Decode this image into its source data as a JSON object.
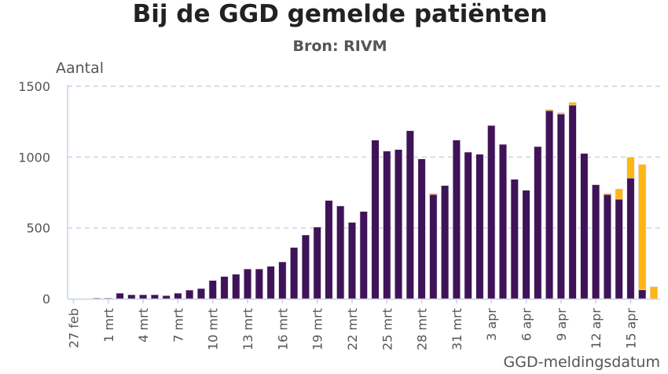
{
  "chart_data": {
    "type": "bar",
    "stacked": true,
    "title": "Bij de GGD gemelde patiënten",
    "subtitle": "Bron: RIVM",
    "ylabel": "Aantal",
    "xlabel": "GGD-meldingsdatum",
    "ylim": [
      0,
      1500
    ],
    "yticks": [
      0,
      500,
      1000,
      1500
    ],
    "grid": true,
    "legend": "none",
    "xtick_labels": [
      "27 feb",
      "1 mrt",
      "4 mrt",
      "7 mrt",
      "10 mrt",
      "13 mrt",
      "16 mrt",
      "19 mrt",
      "22 mrt",
      "25 mrt",
      "28 mrt",
      "31 mrt",
      "3 apr",
      "6 apr",
      "9 apr",
      "12 apr",
      "15 apr"
    ],
    "categories": [
      "27 feb",
      "28 feb",
      "29 feb",
      "1 mrt",
      "2 mrt",
      "3 mrt",
      "4 mrt",
      "5 mrt",
      "6 mrt",
      "7 mrt",
      "8 mrt",
      "9 mrt",
      "10 mrt",
      "11 mrt",
      "12 mrt",
      "13 mrt",
      "14 mrt",
      "15 mrt",
      "16 mrt",
      "17 mrt",
      "18 mrt",
      "19 mrt",
      "20 mrt",
      "21 mrt",
      "22 mrt",
      "23 mrt",
      "24 mrt",
      "25 mrt",
      "26 mrt",
      "27 mrt",
      "28 mrt",
      "29 mrt",
      "30 mrt",
      "31 mrt",
      "1 apr",
      "2 apr",
      "3 apr",
      "4 apr",
      "5 apr",
      "6 apr",
      "7 apr",
      "8 apr",
      "9 apr",
      "10 apr",
      "11 apr",
      "12 apr",
      "13 apr",
      "14 apr",
      "15 apr",
      "16 apr",
      "17 apr"
    ],
    "series": [
      {
        "color": "#3f1357",
        "values": [
          0,
          0,
          5,
          5,
          39,
          28,
          28,
          28,
          22,
          39,
          61,
          72,
          129,
          157,
          173,
          210,
          210,
          229,
          260,
          362,
          450,
          506,
          694,
          655,
          539,
          616,
          1120,
          1042,
          1053,
          1186,
          987,
          736,
          799,
          1120,
          1035,
          1020,
          1223,
          1090,
          843,
          766,
          1074,
          1328,
          1304,
          1367,
          1026,
          805,
          736,
          703,
          852,
          63,
          0
        ]
      },
      {
        "color": "#ffb612",
        "values": [
          0,
          0,
          0,
          0,
          0,
          0,
          0,
          0,
          0,
          0,
          0,
          0,
          0,
          0,
          0,
          0,
          0,
          0,
          0,
          0,
          0,
          0,
          0,
          0,
          0,
          0,
          0,
          0,
          0,
          0,
          0,
          8,
          0,
          0,
          0,
          0,
          0,
          0,
          0,
          0,
          0,
          8,
          10,
          19,
          0,
          0,
          8,
          72,
          146,
          885,
          85
        ]
      }
    ]
  }
}
